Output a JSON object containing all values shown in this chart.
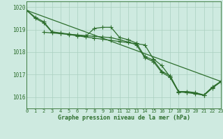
{
  "title": "Graphe pression niveau de la mer (hPa)",
  "bg_color": "#ceeae0",
  "line_color": "#2d6e2d",
  "grid_color": "#aacfbf",
  "ylim": [
    1015.5,
    1020.25
  ],
  "xlim": [
    0,
    23
  ],
  "xticks": [
    0,
    1,
    2,
    3,
    4,
    5,
    6,
    7,
    8,
    9,
    10,
    11,
    12,
    13,
    14,
    15,
    16,
    17,
    18,
    19,
    20,
    21,
    22,
    23
  ],
  "yticks": [
    1016,
    1017,
    1018,
    1019,
    1020
  ],
  "series": [
    {
      "x": [
        0,
        23
      ],
      "y": [
        1019.85,
        1016.7
      ],
      "marker": "None",
      "markersize": 0,
      "linewidth": 0.9
    },
    {
      "x": [
        0,
        1,
        2,
        3,
        4,
        5,
        6,
        7,
        8,
        9,
        10,
        11,
        12,
        13,
        14,
        15,
        16,
        17,
        18,
        19,
        20,
        21,
        22,
        23
      ],
      "y": [
        1019.85,
        1019.55,
        1019.35,
        1018.9,
        1018.85,
        1018.8,
        1018.75,
        1018.7,
        1019.05,
        1019.1,
        1019.1,
        1018.65,
        1018.55,
        1018.4,
        1017.8,
        1017.65,
        1017.15,
        1016.95,
        1016.25,
        1016.25,
        1016.2,
        1016.1,
        1016.45,
        1016.7
      ],
      "marker": "+",
      "markersize": 4,
      "linewidth": 0.9
    },
    {
      "x": [
        0,
        1,
        2,
        3,
        4,
        5,
        6,
        7,
        8,
        9,
        10,
        11,
        12,
        13,
        14,
        15,
        16,
        17,
        18,
        19,
        20,
        21,
        22,
        23
      ],
      "y": [
        1019.85,
        1019.5,
        1019.3,
        1018.88,
        1018.83,
        1018.78,
        1018.72,
        1018.67,
        1018.62,
        1018.57,
        1018.52,
        1018.47,
        1018.42,
        1018.37,
        1018.32,
        1017.7,
        1017.4,
        1016.9,
        1016.25,
        1016.2,
        1016.15,
        1016.08,
        1016.4,
        1016.68
      ],
      "marker": "+",
      "markersize": 4,
      "linewidth": 0.9
    },
    {
      "x": [
        2,
        3,
        4,
        5,
        6,
        7,
        8,
        9,
        10,
        11,
        12,
        13,
        14,
        15,
        16,
        17,
        18,
        19,
        20,
        21,
        22,
        23
      ],
      "y": [
        1018.88,
        1018.85,
        1018.82,
        1018.79,
        1018.76,
        1018.73,
        1018.7,
        1018.67,
        1018.64,
        1018.55,
        1018.45,
        1018.32,
        1017.75,
        1017.58,
        1017.1,
        1016.88,
        1016.22,
        1016.22,
        1016.18,
        1016.08,
        1016.42,
        1016.68
      ],
      "marker": "+",
      "markersize": 4,
      "linewidth": 0.9
    }
  ]
}
